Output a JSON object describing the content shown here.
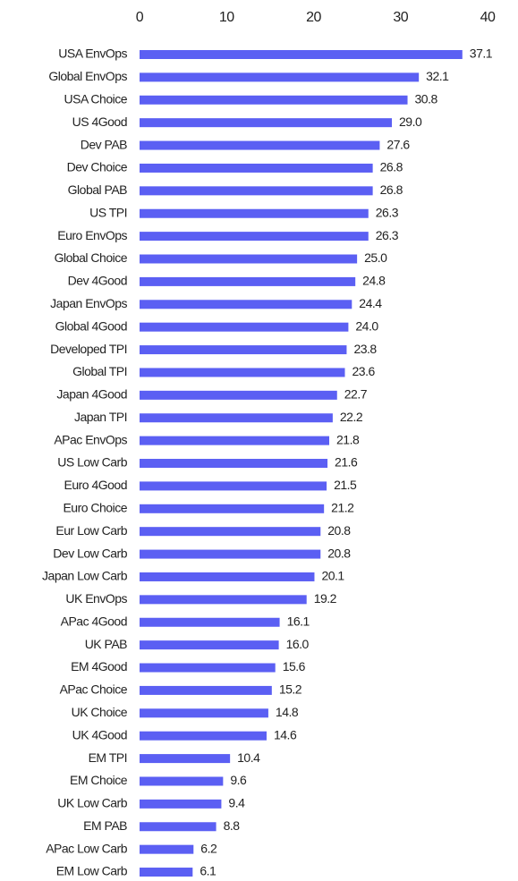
{
  "chart_data": {
    "type": "bar",
    "orientation": "horizontal",
    "categories": [
      "USA EnvOps",
      "Global EnvOps",
      "USA Choice",
      "US 4Good",
      "Dev PAB",
      "Dev Choice",
      "Global PAB",
      "US TPI",
      "Euro EnvOps",
      "Global Choice",
      "Dev 4Good",
      "Japan EnvOps",
      "Global 4Good",
      "Developed TPI",
      "Global TPI",
      "Japan 4Good",
      "Japan TPI",
      "APac EnvOps",
      "US Low Carb",
      "Euro 4Good",
      "Euro Choice",
      "Eur Low Carb",
      "Dev Low Carb",
      "Japan Low Carb",
      "UK EnvOps",
      "APac 4Good",
      "UK PAB",
      "EM 4Good",
      "APac Choice",
      "UK Choice",
      "UK 4Good",
      "EM TPI",
      "EM Choice",
      "UK Low Carb",
      "EM PAB",
      "APac Low Carb",
      "EM Low Carb"
    ],
    "values": [
      37.1,
      32.1,
      30.8,
      29.0,
      27.6,
      26.8,
      26.8,
      26.3,
      26.3,
      25.0,
      24.8,
      24.4,
      24.0,
      23.8,
      23.6,
      22.7,
      22.2,
      21.8,
      21.6,
      21.5,
      21.2,
      20.8,
      20.8,
      20.1,
      19.2,
      16.1,
      16.0,
      15.6,
      15.2,
      14.8,
      14.6,
      10.4,
      9.6,
      9.4,
      8.8,
      6.2,
      6.1
    ],
    "value_labels": [
      "37.1",
      "32.1",
      "30.8",
      "29.0",
      "27.6",
      "26.8",
      "26.8",
      "26.3",
      "26.3",
      "25.0",
      "24.8",
      "24.4",
      "24.0",
      "23.8",
      "23.6",
      "22.7",
      "22.2",
      "21.8",
      "21.6",
      "21.5",
      "21.2",
      "20.8",
      "20.8",
      "20.1",
      "19.2",
      "16.1",
      "16.0",
      "15.6",
      "15.2",
      "14.8",
      "14.6",
      "10.4",
      "9.6",
      "9.4",
      "8.8",
      "6.2",
      "6.1"
    ],
    "color": "#5b5ff3",
    "xlim": [
      0,
      40
    ],
    "xticks": [
      0,
      10,
      20,
      30,
      40
    ],
    "grid": false
  }
}
